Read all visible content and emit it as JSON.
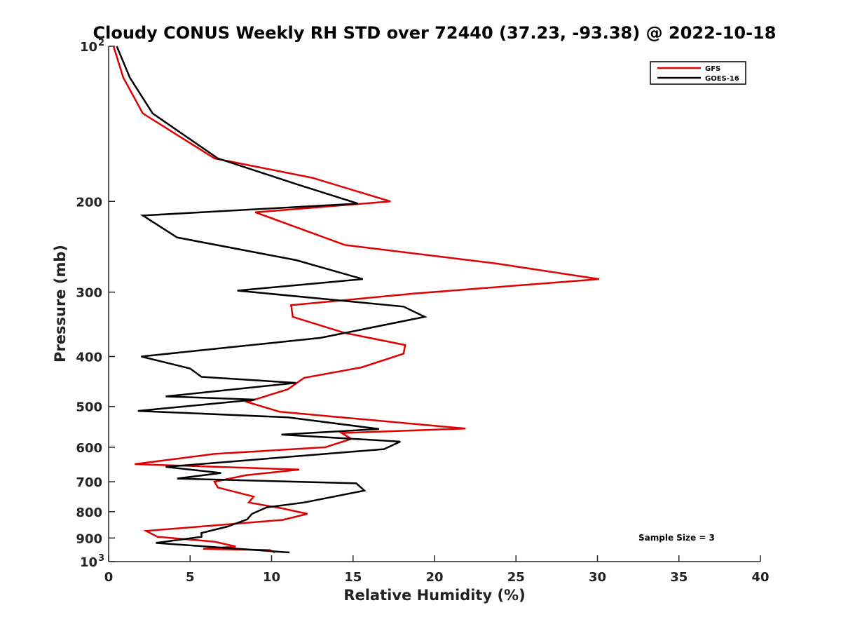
{
  "chart_data": {
    "type": "line",
    "title": "Cloudy CONUS Weekly RH STD over 72440 (37.23, -93.38) @ 2022-10-18",
    "xlabel": "Relative Humidity (%)",
    "ylabel": "Pressure (mb)",
    "xlim": [
      0,
      40
    ],
    "ylim": [
      100,
      1000
    ],
    "y_scale": "log",
    "y_reversed": true,
    "x_ticks": [
      "0",
      "5",
      "10",
      "15",
      "20",
      "25",
      "30",
      "35",
      "40"
    ],
    "y_ticks": [
      {
        "value": 100,
        "label": "10",
        "sup": "2"
      },
      {
        "value": 200,
        "label": "200",
        "sup": ""
      },
      {
        "value": 300,
        "label": "300",
        "sup": ""
      },
      {
        "value": 400,
        "label": "400",
        "sup": ""
      },
      {
        "value": 500,
        "label": "500",
        "sup": ""
      },
      {
        "value": 600,
        "label": "600",
        "sup": ""
      },
      {
        "value": 700,
        "label": "700",
        "sup": ""
      },
      {
        "value": 800,
        "label": "800",
        "sup": ""
      },
      {
        "value": 900,
        "label": "900",
        "sup": ""
      },
      {
        "value": 1000,
        "label": "10",
        "sup": "3"
      }
    ],
    "legend_position": "top-right",
    "annotation": "Sample Size = 3",
    "series": [
      {
        "name": "GFS",
        "color": "#e00000",
        "points": [
          [
            0.3,
            100
          ],
          [
            0.9,
            115
          ],
          [
            2.1,
            135
          ],
          [
            6.5,
            165
          ],
          [
            12.5,
            180
          ],
          [
            17.3,
            200
          ],
          [
            9.0,
            210
          ],
          [
            14.5,
            243
          ],
          [
            23.8,
            264
          ],
          [
            30.1,
            283
          ],
          [
            18.7,
            302
          ],
          [
            11.2,
            318
          ],
          [
            11.3,
            335
          ],
          [
            14.5,
            360
          ],
          [
            18.2,
            380
          ],
          [
            18.1,
            395
          ],
          [
            15.5,
            420
          ],
          [
            12.0,
            440
          ],
          [
            11.0,
            463
          ],
          [
            8.5,
            490
          ],
          [
            10.5,
            512
          ],
          [
            21.9,
            552
          ],
          [
            14.3,
            563
          ],
          [
            14.9,
            578
          ],
          [
            13.3,
            600
          ],
          [
            6.5,
            618
          ],
          [
            1.6,
            647
          ],
          [
            11.7,
            663
          ],
          [
            8.4,
            680
          ],
          [
            6.5,
            700
          ],
          [
            6.7,
            718
          ],
          [
            8.9,
            748
          ],
          [
            8.6,
            768
          ],
          [
            10.6,
            788
          ],
          [
            12.2,
            808
          ],
          [
            10.7,
            830
          ],
          [
            2.3,
            872
          ],
          [
            3.0,
            895
          ],
          [
            6.5,
            915
          ],
          [
            7.8,
            935
          ],
          [
            5.8,
            945
          ],
          [
            9.9,
            950
          ],
          [
            10.2,
            960
          ]
        ]
      },
      {
        "name": "GOES-16",
        "color": "#000000",
        "points": [
          [
            0.5,
            100
          ],
          [
            1.3,
            115
          ],
          [
            2.7,
            135
          ],
          [
            6.7,
            165
          ],
          [
            11.5,
            185
          ],
          [
            15.3,
            202
          ],
          [
            2.1,
            213
          ],
          [
            4.2,
            235
          ],
          [
            11.5,
            260
          ],
          [
            15.6,
            283
          ],
          [
            7.9,
            298
          ],
          [
            18.1,
            320
          ],
          [
            19.4,
            335
          ],
          [
            13.0,
            368
          ],
          [
            2.0,
            400
          ],
          [
            5.0,
            422
          ],
          [
            5.7,
            438
          ],
          [
            11.5,
            450
          ],
          [
            3.5,
            478
          ],
          [
            9.0,
            485
          ],
          [
            1.8,
            510
          ],
          [
            11.0,
            525
          ],
          [
            16.6,
            553
          ],
          [
            10.6,
            567
          ],
          [
            17.9,
            585
          ],
          [
            16.9,
            605
          ],
          [
            3.5,
            655
          ],
          [
            6.9,
            673
          ],
          [
            4.2,
            690
          ],
          [
            15.2,
            705
          ],
          [
            15.7,
            728
          ],
          [
            12.0,
            768
          ],
          [
            9.7,
            785
          ],
          [
            8.8,
            808
          ],
          [
            8.5,
            828
          ],
          [
            7.3,
            855
          ],
          [
            5.7,
            880
          ],
          [
            5.7,
            895
          ],
          [
            2.9,
            920
          ],
          [
            11.1,
            960
          ]
        ]
      }
    ]
  }
}
